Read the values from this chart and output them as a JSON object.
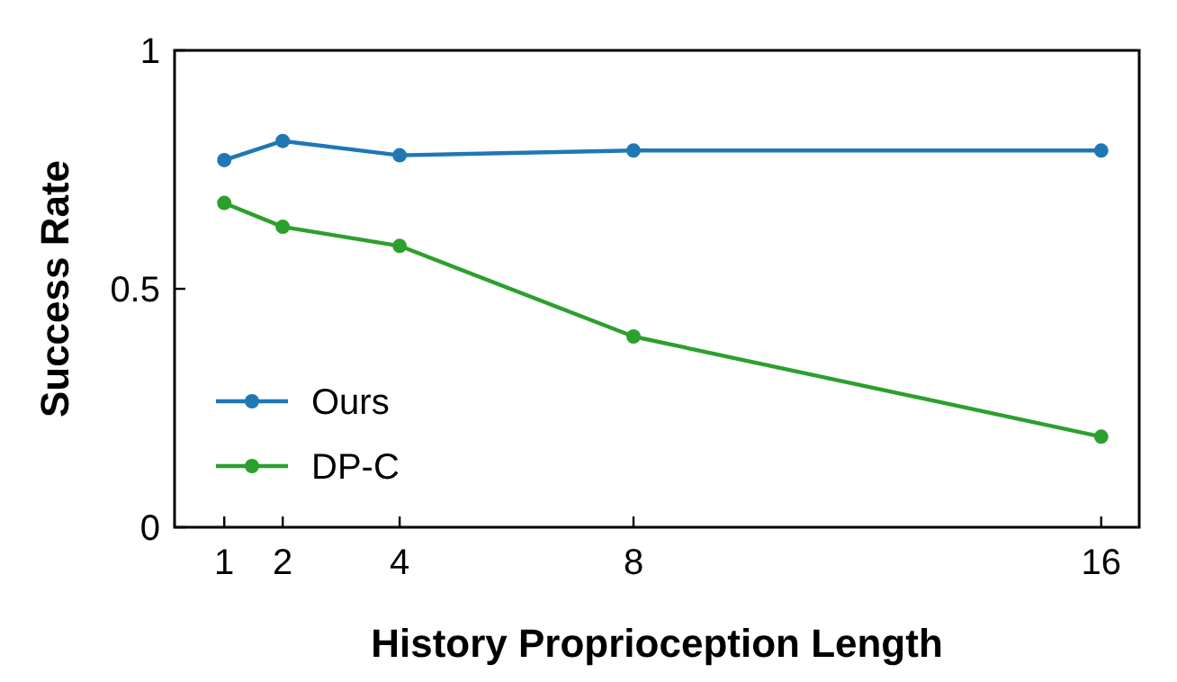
{
  "chart_data": {
    "type": "line",
    "xlabel": "History Proprioception Length",
    "ylabel": "Success Rate",
    "x": [
      1,
      2,
      4,
      8,
      16
    ],
    "series": [
      {
        "name": "Ours",
        "color": "#1f77b4",
        "values": [
          0.77,
          0.81,
          0.78,
          0.79,
          0.79
        ]
      },
      {
        "name": "DP-C",
        "color": "#2ca02c",
        "values": [
          0.68,
          0.63,
          0.59,
          0.4,
          0.19
        ]
      }
    ],
    "xlim": [
      0.15,
      16.65
    ],
    "xticks": [
      1,
      2,
      4,
      8,
      16
    ],
    "ylim": [
      0,
      1
    ],
    "yticks": [
      0,
      {
        "value": 0.5,
        "label": "0.5"
      },
      1
    ],
    "marker": "circle",
    "line_style": "solid",
    "legend": "bottom left",
    "grid": false
  }
}
